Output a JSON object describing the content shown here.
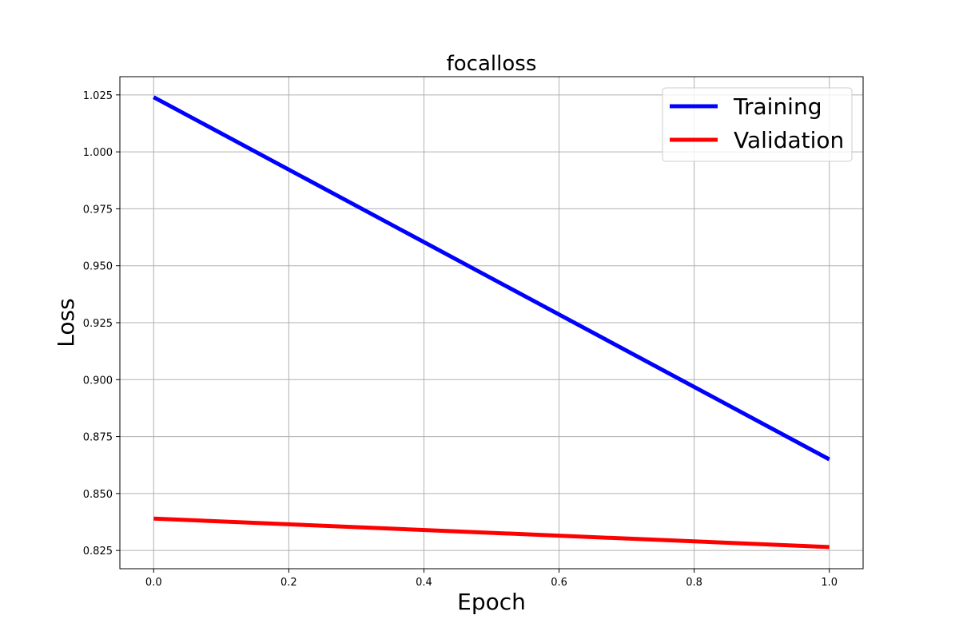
{
  "chart_data": {
    "type": "line",
    "title": "focalloss",
    "xlabel": "Epoch",
    "ylabel": "Loss",
    "x": [
      0.0,
      1.0
    ],
    "xlim": [
      -0.05,
      1.05
    ],
    "ylim": [
      0.817,
      1.033
    ],
    "xticks": [
      0.0,
      0.2,
      0.4,
      0.6,
      0.8,
      1.0
    ],
    "xtick_labels": [
      "0.0",
      "0.2",
      "0.4",
      "0.6",
      "0.8",
      "1.0"
    ],
    "yticks": [
      0.825,
      0.85,
      0.875,
      0.9,
      0.925,
      0.95,
      0.975,
      1.0,
      1.025
    ],
    "ytick_labels": [
      "0.825",
      "0.850",
      "0.875",
      "0.900",
      "0.925",
      "0.950",
      "0.975",
      "1.000",
      "1.025"
    ],
    "grid": true,
    "legend_position": "top-right",
    "series": [
      {
        "name": "Training",
        "values": [
          1.024,
          0.865
        ],
        "color": "#0000ff"
      },
      {
        "name": "Validation",
        "values": [
          0.839,
          0.8265
        ],
        "color": "#ff0000"
      }
    ]
  }
}
